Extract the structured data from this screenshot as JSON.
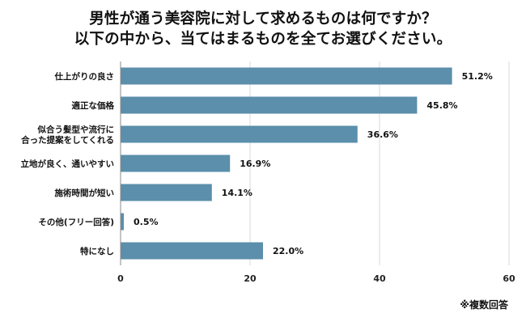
{
  "chart_data": {
    "type": "bar",
    "orientation": "horizontal",
    "title": [
      "男性が通う美容院に対して求めるものは何ですか？",
      "以下の中から、当てはまるものを全てお選びください。"
    ],
    "categories": [
      [
        "仕上がりの良さ"
      ],
      [
        "適正な価格"
      ],
      [
        "似合う髪型や流行に",
        "合った提案をしてくれる"
      ],
      [
        "立地が良く、通いやすい"
      ],
      [
        "施術時間が短い"
      ],
      [
        "その他(フリー回答)"
      ],
      [
        "特になし"
      ]
    ],
    "values": [
      51.2,
      45.8,
      36.6,
      16.9,
      14.1,
      0.5,
      22.0
    ],
    "value_labels": [
      "51.2%",
      "45.8%",
      "36.6%",
      "16.9%",
      "14.1%",
      "0.5%",
      "22.0%"
    ],
    "xlim": [
      0,
      60
    ],
    "xticks": [
      0,
      20,
      40,
      60
    ],
    "xtick_labels": [
      "0",
      "20",
      "40",
      "60"
    ],
    "bar_color": "#5b8fab",
    "grid": true,
    "footnote": "※複数回答"
  }
}
